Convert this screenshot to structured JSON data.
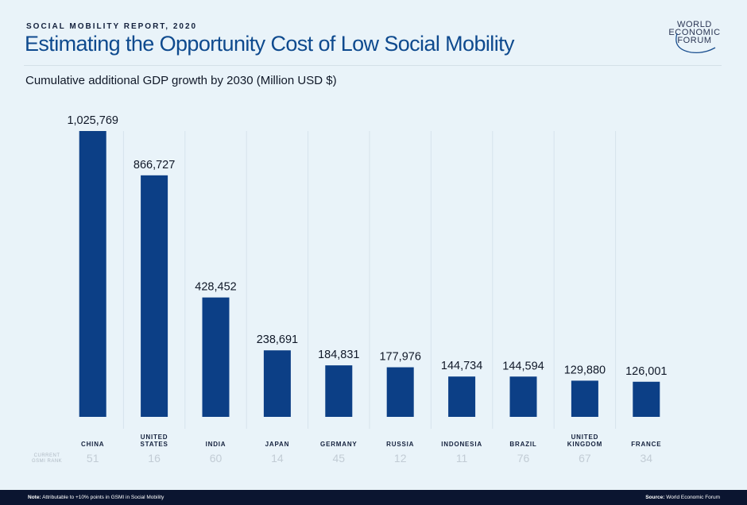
{
  "header": {
    "kicker": "SOCIAL MOBILITY REPORT, 2020",
    "title": "Estimating the Opportunity Cost of Low Social Mobility",
    "logo": "WORLD ECONOMIC FORUM"
  },
  "rank_label": [
    "CURRENT",
    "GSMI RANK"
  ],
  "footer": {
    "note_label": "Note:",
    "note": "Attributable to +10% points in GSMI in Social Mobility",
    "source_label": "Source:",
    "source": "World Economic Forum"
  },
  "chart_data": {
    "type": "bar",
    "title": "Cumulative additional GDP growth by 2030 (Million USD $)",
    "categories": [
      [
        "CHINA"
      ],
      [
        "UNITED",
        "STATES"
      ],
      [
        "INDIA"
      ],
      [
        "JAPAN"
      ],
      [
        "GERMANY"
      ],
      [
        "RUSSIA"
      ],
      [
        "INDONESIA"
      ],
      [
        "BRAZIL"
      ],
      [
        "UNITED",
        "KINGDOM"
      ],
      [
        "FRANCE"
      ]
    ],
    "values": [
      1025769,
      866727,
      428452,
      238691,
      184831,
      177976,
      144734,
      144594,
      129880,
      126001
    ],
    "data_labels": [
      "1,025,769",
      "866,727",
      "428,452",
      "238,691",
      "184,831",
      "177,976",
      "144,734",
      "144,594",
      "129,880",
      "126,001"
    ],
    "gsmi_rank": [
      51,
      16,
      60,
      14,
      45,
      12,
      11,
      76,
      67,
      34
    ],
    "ylim": [
      0,
      1025769
    ],
    "bar_color": "#0c3f86",
    "grid": false
  }
}
